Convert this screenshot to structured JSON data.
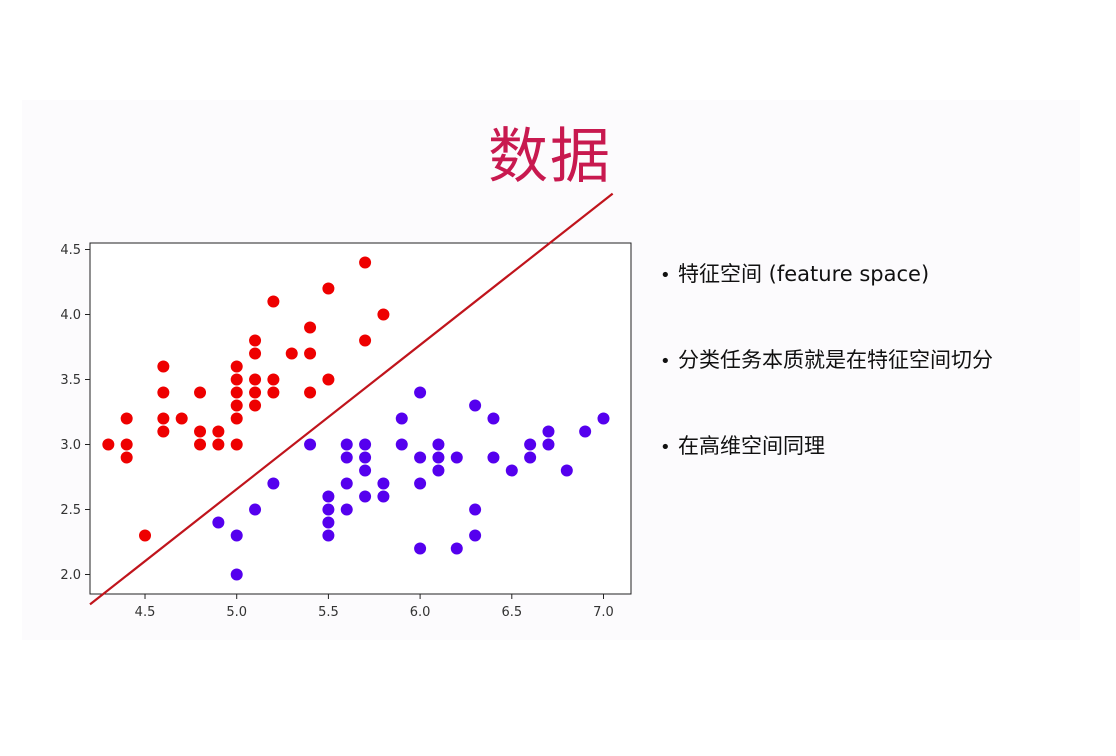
{
  "title": "数据",
  "bullets": [
    {
      "text": "特征空间 (feature space)"
    },
    {
      "text": "分类任务本质就是在特征空间切分"
    },
    {
      "text": "在高维空间同理"
    }
  ],
  "colors": {
    "title": "#c8194f",
    "class_a": "#ee0000",
    "class_b": "#5500ee",
    "boundary": "#c0141c"
  },
  "chart_data": {
    "type": "scatter",
    "xlim": [
      4.2,
      7.15
    ],
    "ylim": [
      1.85,
      4.55
    ],
    "xticks": [
      "4.5",
      "5.0",
      "5.5",
      "6.0",
      "6.5",
      "7.0"
    ],
    "yticks": [
      "2.0",
      "2.5",
      "3.0",
      "3.5",
      "4.0",
      "4.5"
    ],
    "grid": false,
    "series": [
      {
        "color": "#ee0000",
        "points": [
          [
            4.3,
            3.0
          ],
          [
            4.4,
            3.2
          ],
          [
            4.4,
            3.0
          ],
          [
            4.4,
            2.9
          ],
          [
            4.5,
            2.3
          ],
          [
            4.6,
            3.6
          ],
          [
            4.6,
            3.4
          ],
          [
            4.6,
            3.2
          ],
          [
            4.6,
            3.1
          ],
          [
            4.7,
            3.2
          ],
          [
            4.8,
            3.4
          ],
          [
            4.8,
            3.1
          ],
          [
            4.8,
            3.0
          ],
          [
            4.9,
            3.1
          ],
          [
            4.9,
            3.0
          ],
          [
            5.0,
            3.6
          ],
          [
            5.0,
            3.5
          ],
          [
            5.0,
            3.4
          ],
          [
            5.0,
            3.3
          ],
          [
            5.0,
            3.2
          ],
          [
            5.0,
            3.0
          ],
          [
            5.1,
            3.8
          ],
          [
            5.1,
            3.7
          ],
          [
            5.1,
            3.5
          ],
          [
            5.1,
            3.4
          ],
          [
            5.1,
            3.3
          ],
          [
            5.2,
            4.1
          ],
          [
            5.2,
            3.5
          ],
          [
            5.2,
            3.4
          ],
          [
            5.3,
            3.7
          ],
          [
            5.4,
            3.9
          ],
          [
            5.4,
            3.7
          ],
          [
            5.4,
            3.4
          ],
          [
            5.5,
            4.2
          ],
          [
            5.5,
            3.5
          ],
          [
            5.7,
            4.4
          ],
          [
            5.7,
            3.8
          ],
          [
            5.8,
            4.0
          ]
        ]
      },
      {
        "color": "#5500ee",
        "points": [
          [
            4.9,
            2.4
          ],
          [
            5.0,
            2.3
          ],
          [
            5.0,
            2.0
          ],
          [
            5.1,
            2.5
          ],
          [
            5.2,
            2.7
          ],
          [
            5.4,
            3.0
          ],
          [
            5.5,
            2.6
          ],
          [
            5.5,
            2.5
          ],
          [
            5.5,
            2.4
          ],
          [
            5.5,
            2.3
          ],
          [
            5.6,
            3.0
          ],
          [
            5.6,
            2.9
          ],
          [
            5.6,
            2.7
          ],
          [
            5.6,
            2.5
          ],
          [
            5.7,
            3.0
          ],
          [
            5.7,
            2.9
          ],
          [
            5.7,
            2.8
          ],
          [
            5.7,
            2.6
          ],
          [
            5.8,
            2.7
          ],
          [
            5.8,
            2.6
          ],
          [
            5.9,
            3.2
          ],
          [
            5.9,
            3.0
          ],
          [
            6.0,
            3.4
          ],
          [
            6.0,
            2.9
          ],
          [
            6.0,
            2.7
          ],
          [
            6.0,
            2.2
          ],
          [
            6.1,
            3.0
          ],
          [
            6.1,
            2.9
          ],
          [
            6.1,
            2.8
          ],
          [
            6.2,
            2.9
          ],
          [
            6.2,
            2.2
          ],
          [
            6.3,
            3.3
          ],
          [
            6.3,
            2.5
          ],
          [
            6.3,
            2.3
          ],
          [
            6.4,
            3.2
          ],
          [
            6.4,
            2.9
          ],
          [
            6.5,
            2.8
          ],
          [
            6.6,
            3.0
          ],
          [
            6.6,
            2.9
          ],
          [
            6.7,
            3.1
          ],
          [
            6.7,
            3.0
          ],
          [
            6.8,
            2.8
          ],
          [
            6.9,
            3.1
          ],
          [
            7.0,
            3.2
          ]
        ]
      }
    ],
    "boundary_line": [
      [
        4.2,
        1.77
      ],
      [
        7.05,
        4.93
      ]
    ]
  }
}
